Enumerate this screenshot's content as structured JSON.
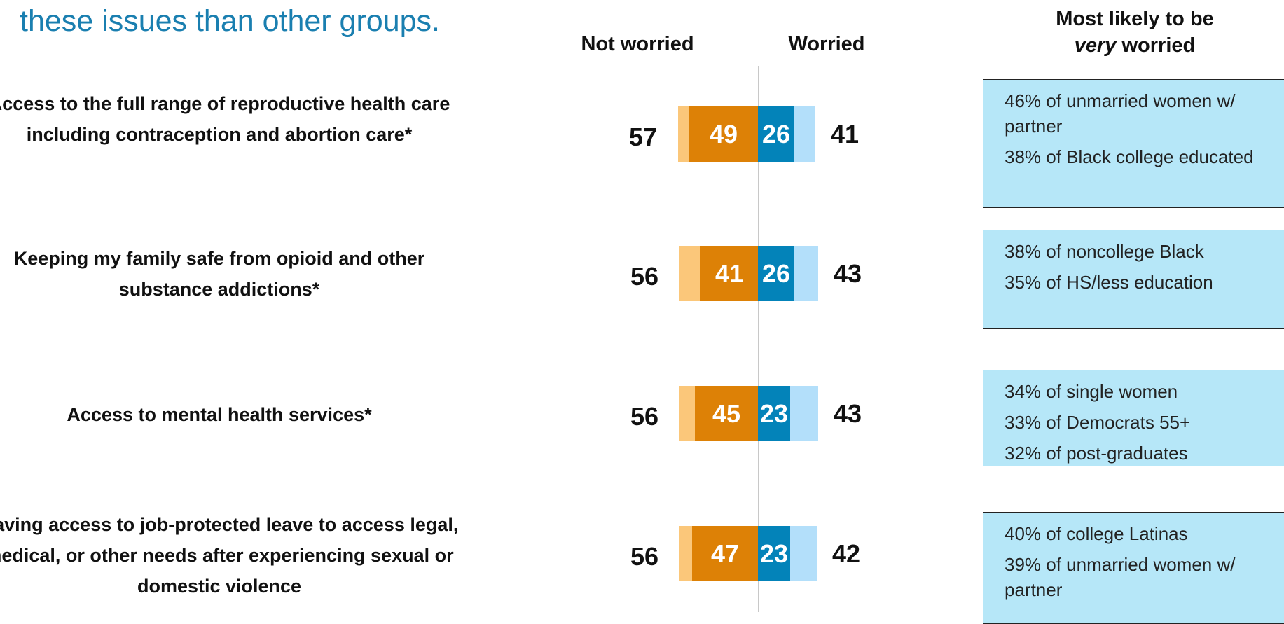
{
  "headline": "these issues than other groups.",
  "headers": {
    "not_worried": "Not worried",
    "worried": "Worried",
    "very_worried_line1": "Most likely to be",
    "very_worried_line2_em": "very",
    "very_worried_line2_rest": " worried"
  },
  "callouts": [
    [
      "46% of unmarried women w/ partner",
      "38% of Black college educated"
    ],
    [
      "38% of noncollege Black",
      "35% of HS/less education"
    ],
    [
      "34% of single women",
      "33% of Democrats 55+",
      "32% of post-graduates"
    ],
    [
      "40% of college Latinas",
      "39% of unmarried women w/ partner"
    ]
  ],
  "chart_data": {
    "type": "bar",
    "orientation": "horizontal-diverging",
    "categories": [
      "Access to the full range of reproductive health care including contraception and abortion care*",
      "Keeping my family safe from opioid and other substance addictions*",
      "Access to mental health services*",
      "Having access to job-protected leave to access legal, medical, or other needs after experiencing sexual or domestic violence"
    ],
    "series": [
      {
        "name": "Not worried",
        "values": [
          57,
          56,
          56,
          56
        ],
        "color": "#fbc77a"
      },
      {
        "values": [
          49,
          41,
          45,
          47
        ],
        "color": "#dd8106"
      },
      {
        "values": [
          26,
          26,
          23,
          23
        ],
        "color": "#0383b9"
      },
      {
        "name": "Worried",
        "values": [
          41,
          43,
          43,
          42
        ],
        "color": "#b3dffa"
      }
    ],
    "grid": false,
    "legend": "none"
  }
}
